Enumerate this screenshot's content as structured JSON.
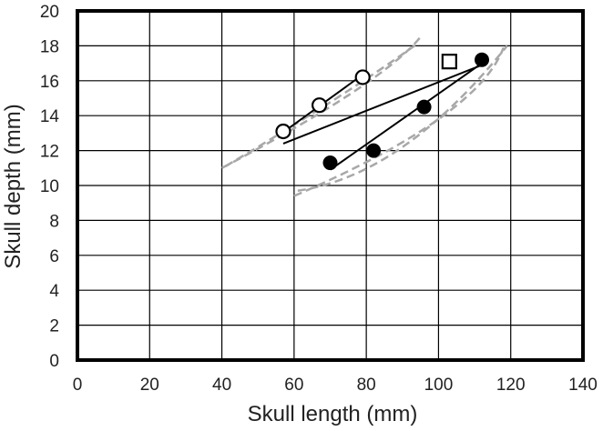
{
  "chart_data": {
    "type": "scatter",
    "title": "",
    "xlabel": "Skull length (mm)",
    "ylabel": "Skull depth (mm)",
    "xlim": [
      0,
      140
    ],
    "ylim": [
      0,
      20
    ],
    "x_ticks": [
      "0",
      "20",
      "40",
      "60",
      "80",
      "100",
      "120",
      "140"
    ],
    "y_ticks": [
      "0",
      "2",
      "4",
      "6",
      "8",
      "10",
      "12",
      "14",
      "16",
      "18",
      "20"
    ],
    "grid": true,
    "legend": "none",
    "series": [
      {
        "marker": "open-circle",
        "points": [
          [
            57,
            13.1
          ],
          [
            67,
            14.6
          ],
          [
            79,
            16.2
          ]
        ]
      },
      {
        "marker": "filled-circle",
        "points": [
          [
            70,
            11.3
          ],
          [
            82,
            12.0
          ],
          [
            96,
            14.5
          ],
          [
            112,
            17.2
          ]
        ]
      },
      {
        "marker": "open-square",
        "points": [
          [
            103,
            17.1
          ]
        ]
      }
    ],
    "trend_lines": [
      {
        "x": [
          56,
          80
        ],
        "y": [
          12.9,
          16.5
        ]
      },
      {
        "x": [
          70,
          112
        ],
        "y": [
          10.9,
          17.0
        ]
      },
      {
        "x": [
          57,
          112
        ],
        "y": [
          12.4,
          16.9
        ]
      }
    ],
    "dashed_curves": [
      {
        "x": [
          40,
          76,
          95
        ],
        "y": [
          11.0,
          15.3,
          18.5
        ]
      },
      {
        "x": [
          41,
          71,
          94
        ],
        "y": [
          11.1,
          14.9,
          18.1
        ]
      },
      {
        "x": [
          60,
          100,
          118
        ],
        "y": [
          9.4,
          13.8,
          17.9
        ]
      },
      {
        "x": [
          61,
          90,
          119
        ],
        "y": [
          9.7,
          12.2,
          18.0
        ]
      }
    ],
    "colors": {
      "axis": "#000000",
      "grid": "#000000",
      "markers": "#000000",
      "dashed": "#a8a8a8",
      "text": "#222222"
    }
  }
}
